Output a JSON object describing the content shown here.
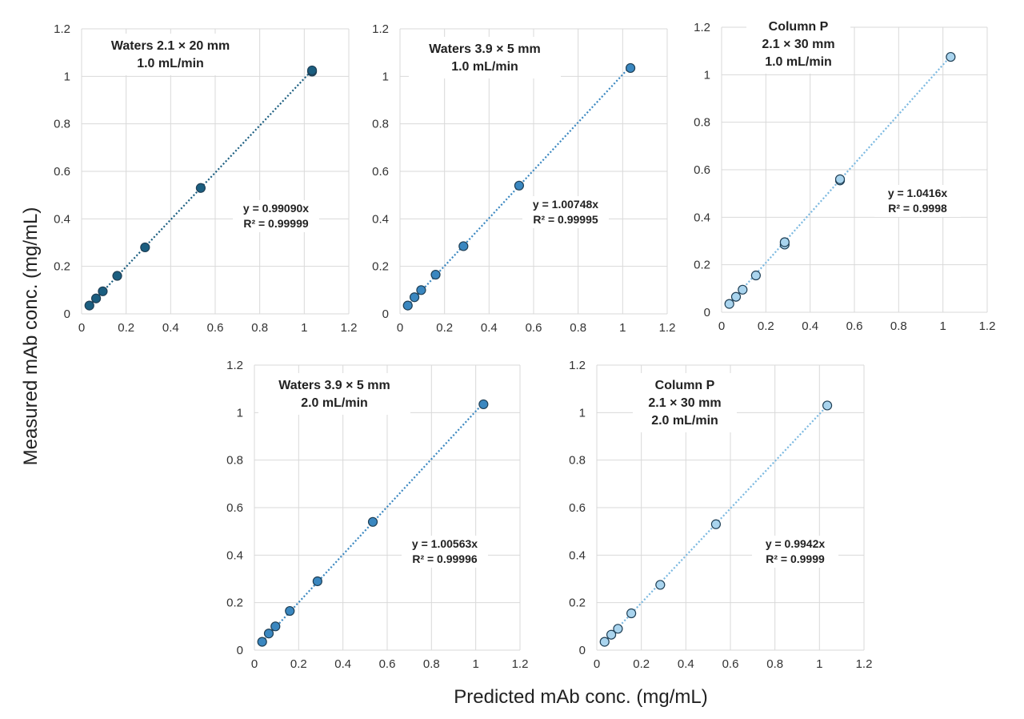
{
  "axis_titles": {
    "x": "Predicted mAb conc. (mg/mL)",
    "y": "Measured mAb conc. (mg/mL)"
  },
  "chart_data": [
    {
      "type": "scatter",
      "panel_label": [
        "Waters 2.1 × 20 mm",
        "1.0 mL/min"
      ],
      "equation": "y = 0.99090x",
      "r2": "R² = 0.99999",
      "slope": 0.9909,
      "xlim": [
        0,
        1.2
      ],
      "ylim": [
        0,
        1.2
      ],
      "xticks": [
        "0",
        "0.2",
        "0.4",
        "0.6",
        "0.8",
        "1",
        "1.2"
      ],
      "yticks": [
        "0",
        "0.2",
        "0.4",
        "0.6",
        "0.8",
        "1",
        "1.2"
      ],
      "grid": true,
      "point_color": "#1b5e80",
      "line_color": "#1b5e80",
      "x": [
        0.035,
        0.065,
        0.095,
        0.16,
        0.285,
        0.535,
        1.035,
        1.035
      ],
      "y": [
        0.035,
        0.065,
        0.095,
        0.16,
        0.28,
        0.53,
        1.02,
        1.025
      ]
    },
    {
      "type": "scatter",
      "panel_label": [
        "Waters 3.9 × 5 mm",
        "1.0 mL/min"
      ],
      "equation": "y = 1.00748x",
      "r2": "R² = 0.99995",
      "slope": 1.00748,
      "xlim": [
        0,
        1.2
      ],
      "ylim": [
        0,
        1.2
      ],
      "xticks": [
        "0",
        "0.2",
        "0.4",
        "0.6",
        "0.8",
        "1",
        "1.2"
      ],
      "yticks": [
        "0",
        "0.2",
        "0.4",
        "0.6",
        "0.8",
        "1",
        "1.2"
      ],
      "grid": true,
      "point_color": "#3a87c0",
      "line_color": "#3a87c0",
      "x": [
        0.035,
        0.065,
        0.095,
        0.16,
        0.285,
        0.535,
        1.035
      ],
      "y": [
        0.035,
        0.07,
        0.1,
        0.165,
        0.285,
        0.54,
        1.035
      ]
    },
    {
      "type": "scatter",
      "panel_label": [
        "Column P",
        "2.1 × 30 mm",
        "1.0 mL/min"
      ],
      "equation": "y = 1.0416x",
      "r2": "R² = 0.9998",
      "slope": 1.0416,
      "xlim": [
        0,
        1.2
      ],
      "ylim": [
        0,
        1.2
      ],
      "xticks": [
        "0",
        "0.2",
        "0.4",
        "0.6",
        "0.8",
        "1",
        "1.2"
      ],
      "yticks": [
        "0",
        "0.2",
        "0.4",
        "0.6",
        "0.8",
        "1",
        "1.2"
      ],
      "grid": true,
      "point_color": "#a9d4ee",
      "line_color": "#7ab8e0",
      "x": [
        0.035,
        0.065,
        0.095,
        0.155,
        0.285,
        0.285,
        0.535,
        0.535,
        1.035
      ],
      "y": [
        0.035,
        0.065,
        0.095,
        0.155,
        0.285,
        0.295,
        0.555,
        0.56,
        1.075
      ]
    },
    {
      "type": "scatter",
      "panel_label": [
        "Waters 3.9 × 5 mm",
        "2.0 mL/min"
      ],
      "equation": "y = 1.00563x",
      "r2": "R² = 0.99996",
      "slope": 1.00563,
      "xlim": [
        0,
        1.2
      ],
      "ylim": [
        0,
        1.2
      ],
      "xticks": [
        "0",
        "0.2",
        "0.4",
        "0.6",
        "0.8",
        "1",
        "1.2"
      ],
      "yticks": [
        "0",
        "0.2",
        "0.4",
        "0.6",
        "0.8",
        "1",
        "1.2"
      ],
      "grid": true,
      "point_color": "#3a87c0",
      "line_color": "#3a87c0",
      "x": [
        0.035,
        0.065,
        0.095,
        0.16,
        0.285,
        0.535,
        1.035
      ],
      "y": [
        0.035,
        0.07,
        0.1,
        0.165,
        0.29,
        0.54,
        1.035
      ]
    },
    {
      "type": "scatter",
      "panel_label": [
        "Column P",
        "2.1 × 30 mm",
        "2.0 mL/min"
      ],
      "equation": "y = 0.9942x",
      "r2": "R² = 0.9999",
      "slope": 0.9942,
      "xlim": [
        0,
        1.2
      ],
      "ylim": [
        0,
        1.2
      ],
      "xticks": [
        "0",
        "0.2",
        "0.4",
        "0.6",
        "0.8",
        "1",
        "1.2"
      ],
      "yticks": [
        "0",
        "0.2",
        "0.4",
        "0.6",
        "0.8",
        "1",
        "1.2"
      ],
      "grid": true,
      "point_color": "#a9d4ee",
      "line_color": "#7ab8e0",
      "x": [
        0.035,
        0.065,
        0.095,
        0.155,
        0.285,
        0.535,
        1.035
      ],
      "y": [
        0.035,
        0.065,
        0.09,
        0.155,
        0.275,
        0.53,
        1.03
      ]
    }
  ]
}
